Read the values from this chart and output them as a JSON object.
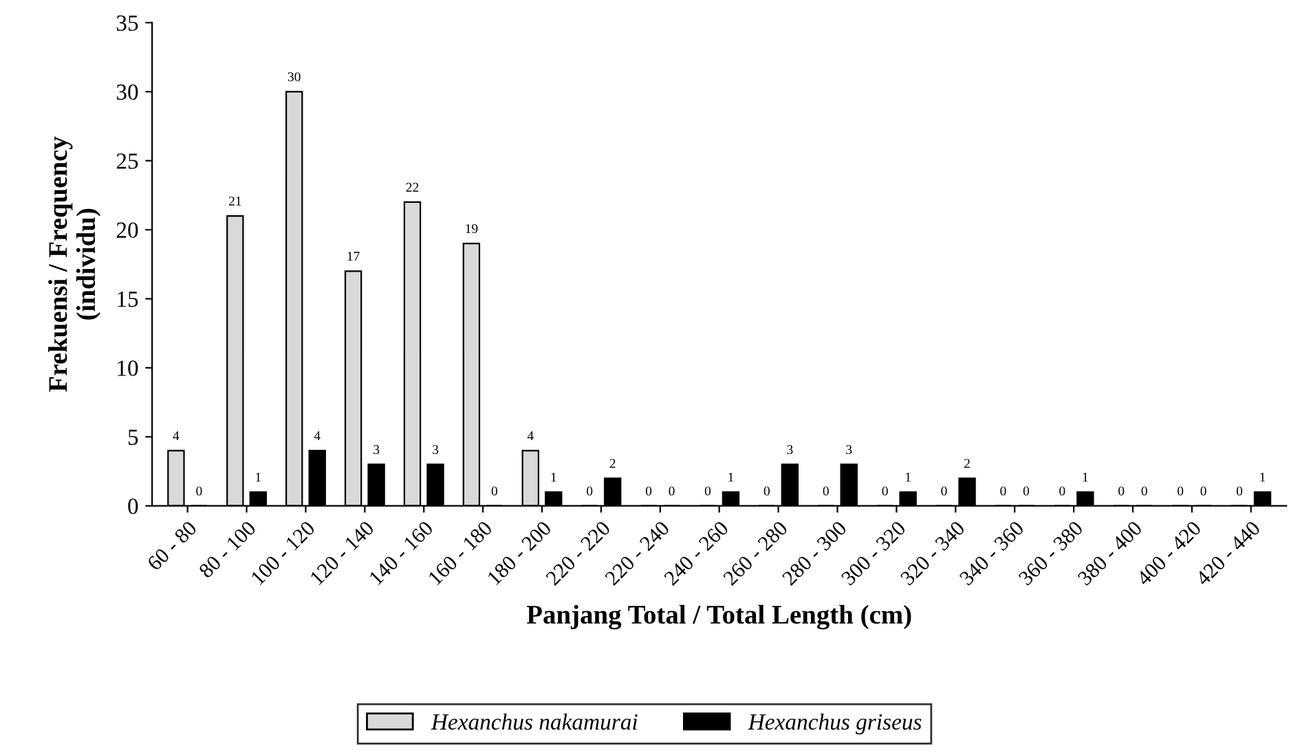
{
  "chart_data": {
    "type": "bar",
    "xlabel": "Panjang Total / Total Length (cm)",
    "ylabel": "Frekuensi / Frequency\n(individu)",
    "categories": [
      "60 - 80",
      "80 - 100",
      "100 - 120",
      "120 - 140",
      "140 - 160",
      "160 - 180",
      "180 - 200",
      "220 - 220",
      "220 - 240",
      "240 - 260",
      "260 - 280",
      "280 - 300",
      "300 - 320",
      "320 - 340",
      "340 - 360",
      "360 - 380",
      "380 - 400",
      "400 - 420",
      "420 - 440"
    ],
    "series": [
      {
        "name": "Hexanchus nakamurai",
        "color": "#d9d9d9",
        "values": [
          4,
          21,
          30,
          17,
          22,
          19,
          4,
          0,
          0,
          0,
          0,
          0,
          0,
          0,
          0,
          0,
          0,
          0,
          0
        ]
      },
      {
        "name": "Hexanchus griseus",
        "color": "#000000",
        "values": [
          0,
          1,
          4,
          3,
          3,
          0,
          1,
          2,
          0,
          1,
          3,
          3,
          1,
          2,
          0,
          1,
          0,
          0,
          1
        ]
      }
    ],
    "ylim": [
      0,
      35
    ],
    "yticks": [
      0,
      5,
      10,
      15,
      20,
      25,
      30,
      35
    ],
    "grid": false,
    "legend": "bottom",
    "data_labels": true
  }
}
